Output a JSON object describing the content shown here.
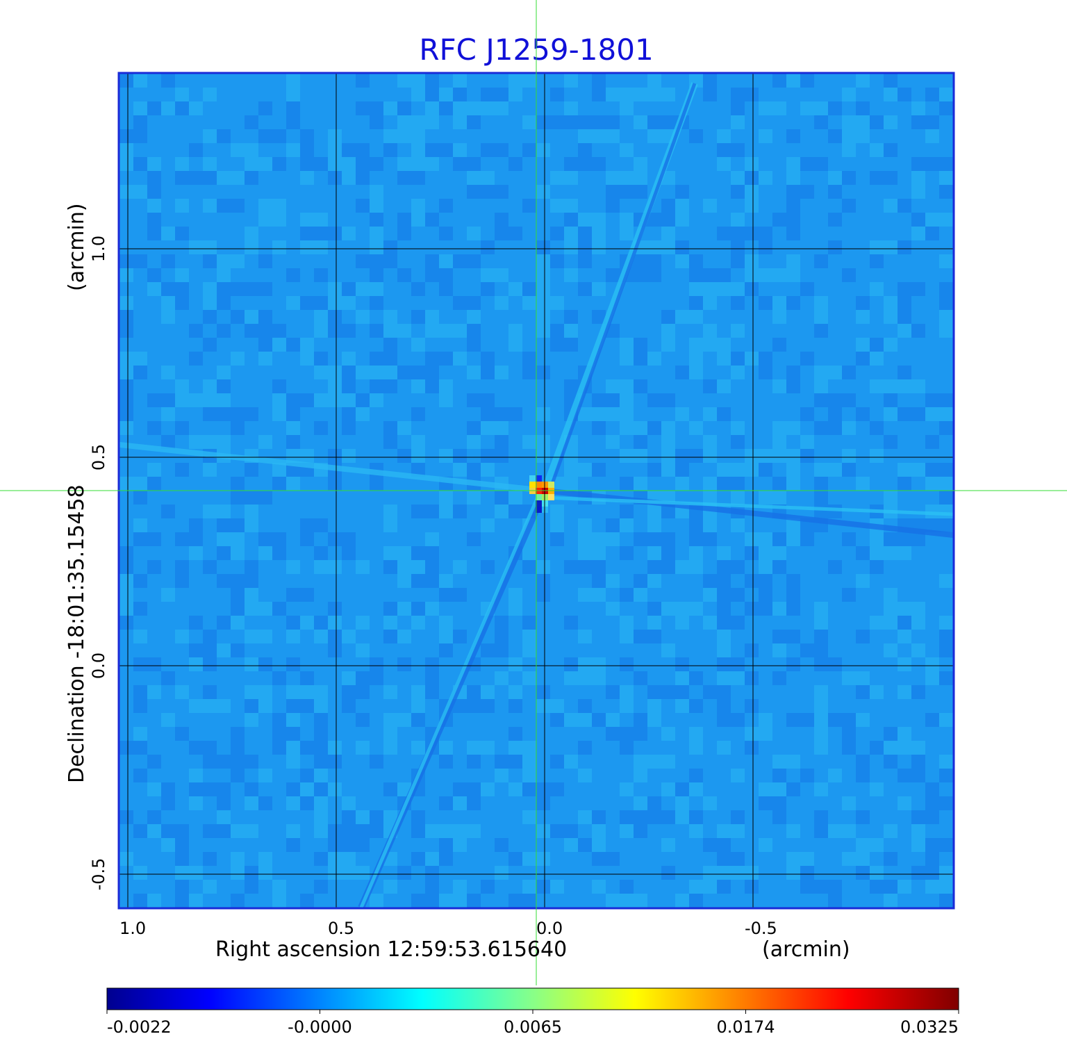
{
  "chart_data": {
    "type": "heatmap",
    "title": "RFC J1259-1801",
    "xlabel": "Right ascension  12:59:53.615640",
    "xunit": "(arcmin)",
    "ylabel": "Declination  -18:01:35.15458",
    "yunit": "(arcmin)",
    "x_ticks": [
      "1.0",
      "0.5",
      "0.0",
      "-0.5"
    ],
    "y_ticks": [
      "1.0",
      "0.5",
      "0.0",
      "-0.5"
    ],
    "xlim": [
      1.02,
      -0.98
    ],
    "ylim": [
      -0.58,
      1.42
    ],
    "grid": true,
    "crosshair": {
      "x": 0.0,
      "y": 0.42
    },
    "source_peak": {
      "x": 0.0,
      "y": 0.42,
      "value": 0.0325
    },
    "colorbar": {
      "colormap": "jet",
      "tick_labels": [
        "-0.0022",
        "-0.0000",
        "0.0065",
        "0.0174",
        "0.0325"
      ]
    }
  },
  "colors": {
    "title": "#1010d8",
    "frame": "#1a2bd8",
    "background_map": "#1c98f0",
    "grid": "#000000",
    "crosshair": "#33dd33"
  }
}
